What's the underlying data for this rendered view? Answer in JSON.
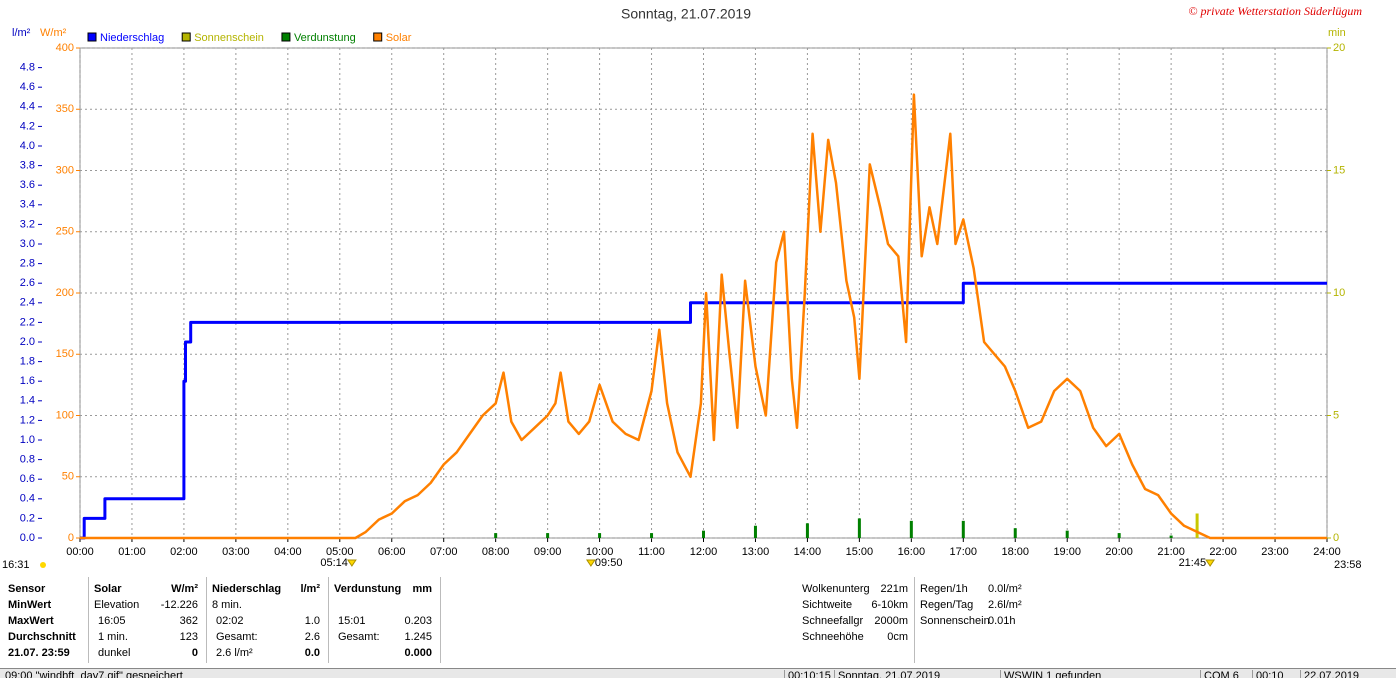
{
  "chart_data": {
    "type": "line",
    "title": "Sonntag, 21.07.2019",
    "copyright": "© private Wetterstation Süderlügum",
    "y_unit": "l/m²",
    "y2_unit": "W/m²",
    "y3_unit": "min",
    "xlim": [
      0,
      24
    ],
    "xticks": [
      {
        "value": 0,
        "label": "00:00"
      },
      {
        "value": 1,
        "label": "01:00"
      },
      {
        "value": 2,
        "label": "02:00"
      },
      {
        "value": 3,
        "label": "03:00"
      },
      {
        "value": 4,
        "label": "04:00"
      },
      {
        "value": 5,
        "label": "05:00"
      },
      {
        "value": 6,
        "label": "06:00"
      },
      {
        "value": 7,
        "label": "07:00"
      },
      {
        "value": 8,
        "label": "08:00"
      },
      {
        "value": 9,
        "label": "09:00"
      },
      {
        "value": 10,
        "label": "10:00"
      },
      {
        "value": 11,
        "label": "11:00"
      },
      {
        "value": 12,
        "label": "12:00"
      },
      {
        "value": 13,
        "label": "13:00"
      },
      {
        "value": 14,
        "label": "14:00"
      },
      {
        "value": 15,
        "label": "15:00"
      },
      {
        "value": 16,
        "label": "16:00"
      },
      {
        "value": 17,
        "label": "17:00"
      },
      {
        "value": 18,
        "label": "18:00"
      },
      {
        "value": 19,
        "label": "19:00"
      },
      {
        "value": 20,
        "label": "20:00"
      },
      {
        "value": 21,
        "label": "21:00"
      },
      {
        "value": 22,
        "label": "22:00"
      },
      {
        "value": 23,
        "label": "23:00"
      },
      {
        "value": 24,
        "label": "24:00"
      }
    ],
    "ylim": [
      0,
      5
    ],
    "yticks": [
      {
        "value": 0,
        "label": "0.0"
      },
      {
        "value": 0.2,
        "label": "0.2"
      },
      {
        "value": 0.4,
        "label": "0.4"
      },
      {
        "value": 0.6,
        "label": "0.6"
      },
      {
        "value": 0.8,
        "label": "0.8"
      },
      {
        "value": 1,
        "label": "1.0"
      },
      {
        "value": 1.2,
        "label": "1.2"
      },
      {
        "value": 1.4,
        "label": "1.4"
      },
      {
        "value": 1.6,
        "label": "1.6"
      },
      {
        "value": 1.8,
        "label": "1.8"
      },
      {
        "value": 2,
        "label": "2.0"
      },
      {
        "value": 2.2,
        "label": "2.2"
      },
      {
        "value": 2.4,
        "label": "2.4"
      },
      {
        "value": 2.6,
        "label": "2.6"
      },
      {
        "value": 2.8,
        "label": "2.8"
      },
      {
        "value": 3,
        "label": "3.0"
      },
      {
        "value": 3.2,
        "label": "3.2"
      },
      {
        "value": 3.4,
        "label": "3.4"
      },
      {
        "value": 3.6,
        "label": "3.6"
      },
      {
        "value": 3.8,
        "label": "3.8"
      },
      {
        "value": 4,
        "label": "4.0"
      },
      {
        "value": 4.2,
        "label": "4.2"
      },
      {
        "value": 4.4,
        "label": "4.4"
      },
      {
        "value": 4.6,
        "label": "4.6"
      },
      {
        "value": 4.8,
        "label": "4.8"
      }
    ],
    "y2lim": [
      0,
      400
    ],
    "y2ticks": [
      0,
      50,
      100,
      150,
      200,
      250,
      300,
      350,
      400
    ],
    "y3lim": [
      0,
      20
    ],
    "y3ticks": [
      0,
      5,
      10,
      15,
      20
    ],
    "grid": true,
    "series": [
      {
        "name": "Niederschlag",
        "color": "#0000ff",
        "type": "line",
        "axis": "y",
        "x": [
          0,
          0.08,
          0.08,
          0.48,
          0.48,
          2.0,
          2.0,
          2.03,
          2.03,
          2.13,
          2.13,
          11.75,
          11.75,
          17.0,
          17.0,
          24
        ],
        "values": [
          0,
          0,
          0.2,
          0.2,
          0.4,
          0.4,
          1.6,
          1.6,
          2.0,
          2.0,
          2.2,
          2.2,
          2.4,
          2.4,
          2.6,
          2.6
        ]
      },
      {
        "name": "Sonnenschein",
        "color": "#c8c800",
        "legend_color": "#b4b400",
        "type": "bar",
        "axis": "y3",
        "x": [
          21.5
        ],
        "values": [
          1.0
        ]
      },
      {
        "name": "Verdunstung",
        "color": "#008000",
        "type": "bar",
        "axis": "y3",
        "x": [
          8,
          9,
          10,
          11,
          12,
          13,
          14,
          15,
          16,
          17,
          18,
          19,
          20,
          21
        ],
        "values": [
          0.2,
          0.2,
          0.2,
          0.2,
          0.3,
          0.5,
          0.6,
          0.8,
          0.7,
          0.7,
          0.4,
          0.3,
          0.2,
          0.1
        ]
      },
      {
        "name": "Solar",
        "color": "#ff8000",
        "type": "line",
        "axis": "y2",
        "x": [
          0,
          5.3,
          5.5,
          5.75,
          6.0,
          6.25,
          6.5,
          6.75,
          7.0,
          7.25,
          7.5,
          7.75,
          8.0,
          8.15,
          8.3,
          8.5,
          8.75,
          9.0,
          9.15,
          9.25,
          9.4,
          9.6,
          9.8,
          10.0,
          10.25,
          10.5,
          10.75,
          11.0,
          11.15,
          11.3,
          11.5,
          11.75,
          11.95,
          12.05,
          12.2,
          12.35,
          12.5,
          12.65,
          12.8,
          13.0,
          13.2,
          13.4,
          13.55,
          13.7,
          13.8,
          13.95,
          14.1,
          14.25,
          14.4,
          14.55,
          14.75,
          14.9,
          15.0,
          15.2,
          15.4,
          15.55,
          15.75,
          15.9,
          16.05,
          16.2,
          16.35,
          16.5,
          16.75,
          16.85,
          17.0,
          17.2,
          17.4,
          17.6,
          17.8,
          18.0,
          18.25,
          18.5,
          18.75,
          19.0,
          19.25,
          19.5,
          19.75,
          20.0,
          20.25,
          20.5,
          20.75,
          21.0,
          21.25,
          21.5,
          21.75,
          24
        ],
        "values": [
          0,
          0,
          5,
          15,
          20,
          30,
          35,
          45,
          60,
          70,
          85,
          100,
          110,
          135,
          95,
          80,
          90,
          100,
          110,
          135,
          95,
          85,
          95,
          125,
          95,
          85,
          80,
          120,
          170,
          110,
          70,
          50,
          110,
          200,
          80,
          215,
          150,
          90,
          210,
          140,
          100,
          225,
          250,
          130,
          90,
          200,
          330,
          250,
          325,
          290,
          210,
          180,
          130,
          305,
          270,
          240,
          230,
          160,
          362,
          230,
          270,
          240,
          330,
          240,
          260,
          220,
          160,
          150,
          140,
          120,
          90,
          95,
          120,
          130,
          120,
          90,
          75,
          85,
          60,
          40,
          35,
          20,
          10,
          5,
          0,
          0
        ]
      }
    ],
    "sun_marks": [
      {
        "label": "05:14",
        "x": 5.233
      },
      {
        "label": "09:50",
        "x": 9.833
      },
      {
        "label": "21:45",
        "x": 21.75
      }
    ],
    "edge_left": "16:31",
    "edge_right": "23:58"
  },
  "panel": {
    "sensor": [
      "Sensor",
      "MinWert",
      "MaxWert",
      "Durchschnitt",
      "21.07. 23:59"
    ],
    "groups": [
      {
        "title": "Solar",
        "unit": "W/m²",
        "rows": [
          {
            "label": "Elevation",
            "value": "-12.226"
          },
          {
            "label": "16:05",
            "value": "362"
          },
          {
            "label": "1 min.",
            "value": "123"
          },
          {
            "label": "dunkel",
            "value": "0"
          }
        ]
      },
      {
        "title": "Niederschlag",
        "unit": "l/m²",
        "rows": [
          {
            "label": "8 min."
          },
          {
            "label": "02:02",
            "value": "1.0"
          },
          {
            "label": "Gesamt:",
            "value": "2.6"
          },
          {
            "label": "2.6 l/m²",
            "value": "0.0"
          }
        ]
      },
      {
        "title": "Verdunstung",
        "unit": "mm",
        "rows": [
          {},
          {
            "label": "15:01",
            "value": "0.203"
          },
          {
            "label": "Gesamt:",
            "value": "1.245"
          },
          {
            "value": "0.000"
          }
        ]
      }
    ],
    "info": [
      {
        "label": "Wolkenunterg",
        "value": "221m"
      },
      {
        "label": "Sichtweite",
        "value": "6-10km"
      },
      {
        "label": "Schneefallgr",
        "value": "2000m"
      },
      {
        "label": "Schneehöhe",
        "value": "0cm"
      }
    ],
    "info2": [
      {
        "label": "Regen/1h",
        "value": "0.0l/m²"
      },
      {
        "label": "Regen/Tag",
        "value": "2.6l/m²"
      },
      {
        "label": "Sonnenschein",
        "value": "0.01h"
      }
    ]
  },
  "status": [
    "09:00  \"windbft_day7.gif\" gespeichert",
    "00:10:15",
    "Sonntag, 21.07.2019",
    "WSWIN 1 gefunden",
    "COM 6",
    "00:10",
    "22.07.2019"
  ]
}
